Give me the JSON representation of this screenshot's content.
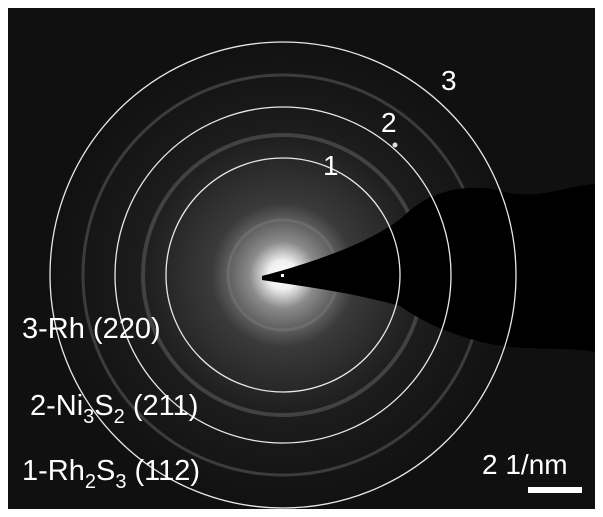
{
  "ring_labels": [
    "1",
    "2",
    "3"
  ],
  "legend": [
    [
      {
        "text": "3-Rh (220)"
      }
    ],
    [
      {
        "text": "2-Ni"
      },
      {
        "text": "3",
        "sub": true
      },
      {
        "text": "S"
      },
      {
        "text": "2",
        "sub": true
      },
      {
        "text": " (211)"
      }
    ],
    [
      {
        "text": "1-Rh"
      },
      {
        "text": "2",
        "sub": true
      },
      {
        "text": "S"
      },
      {
        "text": "3",
        "sub": true
      },
      {
        "text": " (112)"
      }
    ]
  ],
  "scale_bar": "2 1/nm"
}
